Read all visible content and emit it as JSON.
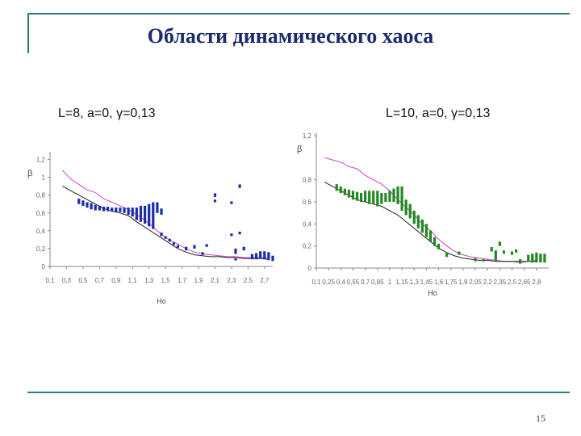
{
  "slide": {
    "title": "Области динамического хаоса",
    "page_number": "15",
    "accent_color": "#2e7d78",
    "title_color": "#1a2b6d"
  },
  "chart_data": [
    {
      "type": "scatter",
      "heading": "L=8, a=0, γ=0,13",
      "ylabel": "β",
      "xlabel": "Ho",
      "xlim": [
        0.1,
        2.8
      ],
      "ylim": [
        0,
        1.25
      ],
      "yticks": [
        "0",
        "0,2",
        "0,4",
        "0,6",
        "0,8",
        "1",
        "1,2"
      ],
      "ytick_values": [
        0,
        0.2,
        0.4,
        0.6,
        0.8,
        1.0,
        1.2
      ],
      "xticks": [
        "0,1",
        "0,3",
        "0,5",
        "0,7",
        "0,9",
        "1,1",
        "1,3",
        "1,5",
        "1,7",
        "1,9",
        "2,1",
        "2,3",
        "2,5",
        "2,7"
      ],
      "xtick_values": [
        0.1,
        0.3,
        0.5,
        0.7,
        0.9,
        1.1,
        1.3,
        1.5,
        1.7,
        1.9,
        2.1,
        2.3,
        2.5,
        2.7
      ],
      "point_color": "#1a2ea8",
      "upper_curve": {
        "color": "#d040d0",
        "x": [
          0.25,
          0.35,
          0.45,
          0.55,
          0.65,
          0.75,
          0.85,
          0.95,
          1.05,
          1.15,
          1.25,
          1.35,
          1.45,
          1.55,
          1.65,
          1.75,
          1.85,
          1.95,
          2.05,
          2.15,
          2.25,
          2.35,
          2.45,
          2.55,
          2.65,
          2.75
        ],
        "y": [
          1.08,
          0.98,
          0.92,
          0.86,
          0.83,
          0.76,
          0.72,
          0.68,
          0.64,
          0.58,
          0.52,
          0.44,
          0.36,
          0.3,
          0.25,
          0.2,
          0.16,
          0.14,
          0.13,
          0.12,
          0.11,
          0.11,
          0.1,
          0.1,
          0.1,
          0.1
        ]
      },
      "lower_curve": {
        "color": "#222222",
        "x": [
          0.25,
          0.35,
          0.45,
          0.55,
          0.65,
          0.75,
          0.85,
          0.95,
          1.05,
          1.15,
          1.25,
          1.35,
          1.45,
          1.55,
          1.65,
          1.75,
          1.85,
          1.95,
          2.05,
          2.15,
          2.25,
          2.35,
          2.45,
          2.55,
          2.65,
          2.75
        ],
        "y": [
          0.9,
          0.85,
          0.8,
          0.75,
          0.7,
          0.65,
          0.62,
          0.6,
          0.57,
          0.5,
          0.44,
          0.38,
          0.32,
          0.26,
          0.2,
          0.16,
          0.13,
          0.12,
          0.11,
          0.11,
          0.1,
          0.1,
          0.09,
          0.09,
          0.09,
          0.08
        ]
      },
      "chaos_bars": [
        {
          "x": 0.45,
          "ymin": 0.7,
          "ymax": 0.76
        },
        {
          "x": 0.5,
          "ymin": 0.68,
          "ymax": 0.74
        },
        {
          "x": 0.55,
          "ymin": 0.66,
          "ymax": 0.72
        },
        {
          "x": 0.6,
          "ymin": 0.64,
          "ymax": 0.71
        },
        {
          "x": 0.65,
          "ymin": 0.63,
          "ymax": 0.69
        },
        {
          "x": 0.7,
          "ymin": 0.63,
          "ymax": 0.68
        },
        {
          "x": 0.75,
          "ymin": 0.62,
          "ymax": 0.67
        },
        {
          "x": 0.8,
          "ymin": 0.62,
          "ymax": 0.67
        },
        {
          "x": 0.85,
          "ymin": 0.62,
          "ymax": 0.66
        },
        {
          "x": 0.9,
          "ymin": 0.61,
          "ymax": 0.66
        },
        {
          "x": 0.95,
          "ymin": 0.61,
          "ymax": 0.66
        },
        {
          "x": 1.0,
          "ymin": 0.6,
          "ymax": 0.66
        },
        {
          "x": 1.05,
          "ymin": 0.58,
          "ymax": 0.66
        },
        {
          "x": 1.1,
          "ymin": 0.56,
          "ymax": 0.66
        },
        {
          "x": 1.15,
          "ymin": 0.52,
          "ymax": 0.66
        },
        {
          "x": 1.2,
          "ymin": 0.5,
          "ymax": 0.68
        },
        {
          "x": 1.25,
          "ymin": 0.48,
          "ymax": 0.68
        },
        {
          "x": 1.3,
          "ymin": 0.45,
          "ymax": 0.7
        },
        {
          "x": 1.35,
          "ymin": 0.42,
          "ymax": 0.72
        },
        {
          "x": 1.4,
          "ymin": 0.6,
          "ymax": 0.72
        },
        {
          "x": 1.45,
          "ymin": 0.58,
          "ymax": 0.65
        },
        {
          "x": 1.45,
          "ymin": 0.34,
          "ymax": 0.38
        },
        {
          "x": 1.5,
          "ymin": 0.31,
          "ymax": 0.34
        },
        {
          "x": 1.55,
          "ymin": 0.28,
          "ymax": 0.31
        },
        {
          "x": 1.6,
          "ymin": 0.24,
          "ymax": 0.27
        },
        {
          "x": 1.65,
          "ymin": 0.21,
          "ymax": 0.24
        },
        {
          "x": 1.75,
          "ymin": 0.18,
          "ymax": 0.22
        },
        {
          "x": 1.85,
          "ymin": 0.2,
          "ymax": 0.24
        },
        {
          "x": 1.95,
          "ymin": 0.13,
          "ymax": 0.16
        },
        {
          "x": 2.0,
          "ymin": 0.22,
          "ymax": 0.25
        },
        {
          "x": 2.1,
          "ymin": 0.78,
          "ymax": 0.82
        },
        {
          "x": 2.1,
          "ymin": 0.72,
          "ymax": 0.75
        },
        {
          "x": 2.3,
          "ymin": 0.7,
          "ymax": 0.73
        },
        {
          "x": 2.3,
          "ymin": 0.34,
          "ymax": 0.37
        },
        {
          "x": 2.35,
          "ymin": 0.14,
          "ymax": 0.2
        },
        {
          "x": 2.4,
          "ymin": 0.88,
          "ymax": 0.92
        },
        {
          "x": 2.4,
          "ymin": 0.36,
          "ymax": 0.39
        },
        {
          "x": 2.45,
          "ymin": 0.18,
          "ymax": 0.22
        },
        {
          "x": 2.35,
          "ymin": 0.07,
          "ymax": 0.09
        },
        {
          "x": 2.55,
          "ymin": 0.08,
          "ymax": 0.14
        },
        {
          "x": 2.6,
          "ymin": 0.08,
          "ymax": 0.15
        },
        {
          "x": 2.65,
          "ymin": 0.09,
          "ymax": 0.17
        },
        {
          "x": 2.7,
          "ymin": 0.08,
          "ymax": 0.17
        },
        {
          "x": 2.75,
          "ymin": 0.07,
          "ymax": 0.16
        },
        {
          "x": 2.8,
          "ymin": 0.06,
          "ymax": 0.12
        }
      ]
    },
    {
      "type": "scatter",
      "heading": "L=10, a=0, γ=0,13",
      "ylabel": "β",
      "xlabel": "Ho",
      "xlim": [
        0.1,
        2.95
      ],
      "ylim": [
        0,
        1.2
      ],
      "yticks": [
        "0",
        "0,2",
        "0,4",
        "0,6",
        "0,8",
        "1,2"
      ],
      "ytick_values": [
        0,
        0.2,
        0.4,
        0.6,
        0.8,
        1.2
      ],
      "xticks": [
        "0,1",
        "0,25",
        "0,4",
        "0,55",
        "0,7",
        "0,85",
        "1",
        "1,15",
        "1,3",
        "1,45",
        "1,6",
        "1,75",
        "1,9",
        "2,05",
        "2,2",
        "2,35",
        "2,5",
        "2,65",
        "2,8"
      ],
      "xtick_values": [
        0.1,
        0.25,
        0.4,
        0.55,
        0.7,
        0.85,
        1.0,
        1.15,
        1.3,
        1.45,
        1.6,
        1.75,
        1.9,
        2.05,
        2.2,
        2.35,
        2.5,
        2.65,
        2.8
      ],
      "point_color": "#1f8a1f",
      "upper_curve": {
        "color": "#d040d0",
        "x": [
          0.2,
          0.3,
          0.4,
          0.5,
          0.6,
          0.7,
          0.8,
          0.9,
          1.0,
          1.1,
          1.2,
          1.3,
          1.4,
          1.5,
          1.6,
          1.7,
          1.8,
          1.9,
          2.0,
          2.1,
          2.2,
          2.3,
          2.4,
          2.5,
          2.6,
          2.7,
          2.8
        ],
        "y": [
          1.0,
          0.98,
          0.96,
          0.92,
          0.9,
          0.84,
          0.8,
          0.76,
          0.7,
          0.62,
          0.55,
          0.48,
          0.4,
          0.34,
          0.26,
          0.2,
          0.15,
          0.12,
          0.1,
          0.09,
          0.08,
          0.07,
          0.06,
          0.06,
          0.05,
          0.06,
          0.07
        ]
      },
      "lower_curve": {
        "color": "#222222",
        "x": [
          0.2,
          0.3,
          0.4,
          0.5,
          0.6,
          0.7,
          0.8,
          0.9,
          1.0,
          1.1,
          1.2,
          1.3,
          1.4,
          1.5,
          1.6,
          1.7,
          1.8,
          1.9,
          2.0,
          2.1,
          2.2,
          2.3,
          2.4,
          2.5,
          2.6,
          2.7,
          2.8
        ],
        "y": [
          0.78,
          0.74,
          0.7,
          0.66,
          0.62,
          0.6,
          0.58,
          0.56,
          0.52,
          0.48,
          0.42,
          0.36,
          0.3,
          0.24,
          0.18,
          0.14,
          0.11,
          0.09,
          0.08,
          0.07,
          0.07,
          0.06,
          0.06,
          0.06,
          0.06,
          0.06,
          0.06
        ]
      },
      "chaos_bars": [
        {
          "x": 0.35,
          "ymin": 0.7,
          "ymax": 0.76
        },
        {
          "x": 0.4,
          "ymin": 0.68,
          "ymax": 0.74
        },
        {
          "x": 0.45,
          "ymin": 0.66,
          "ymax": 0.72
        },
        {
          "x": 0.5,
          "ymin": 0.64,
          "ymax": 0.71
        },
        {
          "x": 0.55,
          "ymin": 0.62,
          "ymax": 0.7
        },
        {
          "x": 0.6,
          "ymin": 0.61,
          "ymax": 0.69
        },
        {
          "x": 0.65,
          "ymin": 0.6,
          "ymax": 0.68
        },
        {
          "x": 0.7,
          "ymin": 0.6,
          "ymax": 0.7
        },
        {
          "x": 0.75,
          "ymin": 0.58,
          "ymax": 0.7
        },
        {
          "x": 0.8,
          "ymin": 0.58,
          "ymax": 0.7
        },
        {
          "x": 0.85,
          "ymin": 0.56,
          "ymax": 0.7
        },
        {
          "x": 0.9,
          "ymin": 0.58,
          "ymax": 0.68
        },
        {
          "x": 0.95,
          "ymin": 0.6,
          "ymax": 0.68
        },
        {
          "x": 1.0,
          "ymin": 0.6,
          "ymax": 0.7
        },
        {
          "x": 1.05,
          "ymin": 0.6,
          "ymax": 0.72
        },
        {
          "x": 1.1,
          "ymin": 0.58,
          "ymax": 0.74
        },
        {
          "x": 1.15,
          "ymin": 0.52,
          "ymax": 0.74
        },
        {
          "x": 1.2,
          "ymin": 0.48,
          "ymax": 0.62
        },
        {
          "x": 1.25,
          "ymin": 0.45,
          "ymax": 0.58
        },
        {
          "x": 1.3,
          "ymin": 0.4,
          "ymax": 0.52
        },
        {
          "x": 1.35,
          "ymin": 0.36,
          "ymax": 0.48
        },
        {
          "x": 1.4,
          "ymin": 0.32,
          "ymax": 0.44
        },
        {
          "x": 1.45,
          "ymin": 0.28,
          "ymax": 0.4
        },
        {
          "x": 1.5,
          "ymin": 0.24,
          "ymax": 0.34
        },
        {
          "x": 1.55,
          "ymin": 0.2,
          "ymax": 0.28
        },
        {
          "x": 1.6,
          "ymin": 0.17,
          "ymax": 0.22
        },
        {
          "x": 1.7,
          "ymin": 0.1,
          "ymax": 0.14
        },
        {
          "x": 1.85,
          "ymin": 0.12,
          "ymax": 0.15
        },
        {
          "x": 2.05,
          "ymin": 0.06,
          "ymax": 0.09
        },
        {
          "x": 2.15,
          "ymin": 0.06,
          "ymax": 0.08
        },
        {
          "x": 2.25,
          "ymin": 0.15,
          "ymax": 0.19
        },
        {
          "x": 2.3,
          "ymin": 0.06,
          "ymax": 0.16
        },
        {
          "x": 2.35,
          "ymin": 0.2,
          "ymax": 0.24
        },
        {
          "x": 2.4,
          "ymin": 0.13,
          "ymax": 0.16
        },
        {
          "x": 2.5,
          "ymin": 0.12,
          "ymax": 0.15
        },
        {
          "x": 2.55,
          "ymin": 0.14,
          "ymax": 0.17
        },
        {
          "x": 2.6,
          "ymin": 0.04,
          "ymax": 0.08
        },
        {
          "x": 2.7,
          "ymin": 0.06,
          "ymax": 0.12
        },
        {
          "x": 2.75,
          "ymin": 0.05,
          "ymax": 0.13
        },
        {
          "x": 2.8,
          "ymin": 0.05,
          "ymax": 0.14
        },
        {
          "x": 2.85,
          "ymin": 0.05,
          "ymax": 0.13
        },
        {
          "x": 2.9,
          "ymin": 0.05,
          "ymax": 0.13
        }
      ]
    }
  ]
}
